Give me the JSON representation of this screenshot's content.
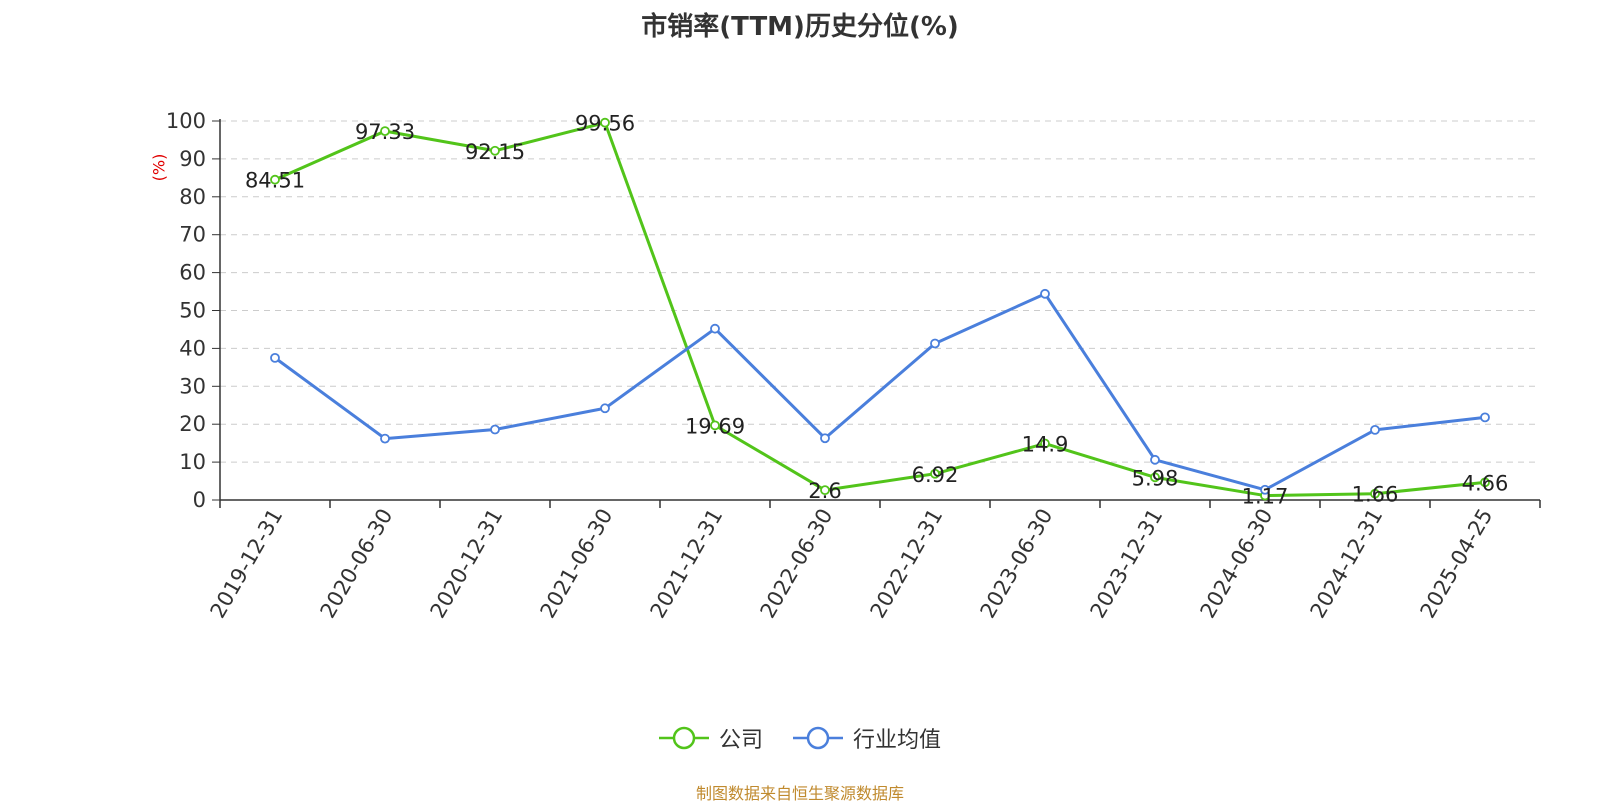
{
  "chart_data": {
    "type": "line",
    "title": "市销率(TTM)历史分位(%)",
    "ylabel": "(%)",
    "xlabel": "",
    "ylim": [
      0,
      100
    ],
    "yticks": [
      0,
      10,
      20,
      30,
      40,
      50,
      60,
      70,
      80,
      90,
      100
    ],
    "grid": true,
    "legend_position": "bottom-center",
    "categories": [
      "2019-12-31",
      "2020-06-30",
      "2020-12-31",
      "2021-06-30",
      "2021-12-31",
      "2022-06-30",
      "2022-12-31",
      "2023-06-30",
      "2023-12-31",
      "2024-06-30",
      "2024-12-31",
      "2025-04-25"
    ],
    "series": [
      {
        "name": "公司",
        "color": "#52c41a",
        "values": [
          84.51,
          97.33,
          92.15,
          99.56,
          19.69,
          2.6,
          6.92,
          14.9,
          5.98,
          1.17,
          1.66,
          4.66
        ],
        "labels": [
          "84.51",
          "97.33",
          "92.15",
          "99.56",
          "19.69",
          "2.6",
          "6.92",
          "14.9",
          "5.98",
          "1.17",
          "1.66",
          "4.66"
        ]
      },
      {
        "name": "行业均值",
        "color": "#4a7fdc",
        "values": [
          37.5,
          16.2,
          18.6,
          24.2,
          45.2,
          16.3,
          41.3,
          54.4,
          10.6,
          2.7,
          18.5,
          21.8
        ]
      }
    ]
  },
  "source_text": "制图数据来自恒生聚源数据库"
}
